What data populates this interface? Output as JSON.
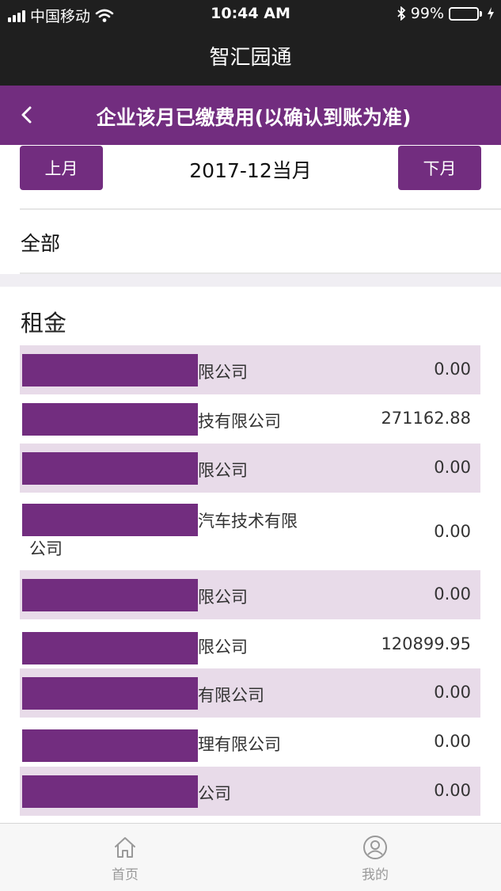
{
  "status_bar": {
    "carrier": "中国移动",
    "time": "10:44 AM",
    "battery_percent": "99%",
    "icons": [
      "signal-icon",
      "wifi-icon",
      "bluetooth-icon",
      "battery-icon",
      "charging-icon"
    ],
    "battery_color": "#4cd964"
  },
  "app": {
    "title": "智汇园通"
  },
  "page": {
    "title": "企业该月已缴费用(以确认到账为准)"
  },
  "month_nav": {
    "prev_label": "上月",
    "current": "2017-12当月",
    "next_label": "下月"
  },
  "filter": {
    "label": "全部"
  },
  "section": {
    "title": "租金",
    "rows": [
      {
        "company_visible": "限公司",
        "amount": "0.00"
      },
      {
        "company_visible": "技有限公司",
        "amount": "271162.88"
      },
      {
        "company_visible": "限公司",
        "amount": "0.00"
      },
      {
        "company_visible": "汽车技术有限",
        "company_wrap": "公司",
        "amount": "0.00"
      },
      {
        "company_visible": "限公司",
        "amount": "0.00"
      },
      {
        "company_visible": "限公司",
        "amount": "120899.95"
      },
      {
        "company_visible": "有限公司",
        "amount": "0.00"
      },
      {
        "company_visible": "理有限公司",
        "amount": "0.00"
      },
      {
        "company_visible": "公司",
        "amount": "0.00"
      }
    ]
  },
  "tab_bar": {
    "items": [
      {
        "label": "首页",
        "icon": "home-icon"
      },
      {
        "label": "我的",
        "icon": "user-icon"
      }
    ]
  },
  "colors": {
    "brand": "#722d7f",
    "row_shade": "#e8dbe9",
    "header_dark": "#1f1f1f"
  }
}
